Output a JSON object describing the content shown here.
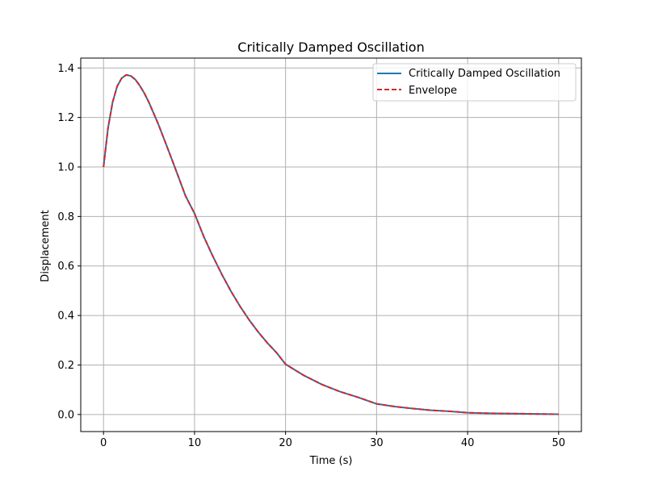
{
  "chart_data": {
    "type": "line",
    "title": "Critically Damped Oscillation",
    "xlabel": "Time (s)",
    "ylabel": "Displacement",
    "xlim": [
      -2.5,
      52.5
    ],
    "ylim": [
      -0.069,
      1.44
    ],
    "xticks": [
      0,
      10,
      20,
      30,
      40,
      50
    ],
    "yticks": [
      0.0,
      0.2,
      0.4,
      0.6,
      0.8,
      1.0,
      1.2,
      1.4
    ],
    "ytick_labels": [
      "0.0",
      "0.2",
      "0.4",
      "0.6",
      "0.8",
      "1.0",
      "1.2",
      "1.4"
    ],
    "grid": true,
    "legend_position": "top-right",
    "series": [
      {
        "name": "Critically Damped Oscillation",
        "color": "#1f77b4",
        "style": "solid",
        "x": [
          0,
          0.5,
          1,
          1.5,
          2,
          2.5,
          3,
          3.5,
          4,
          4.5,
          5,
          6,
          7,
          8,
          9,
          10,
          11,
          12,
          13,
          14,
          15,
          16,
          17,
          18,
          19,
          20,
          22,
          24,
          26,
          28,
          30,
          32,
          34,
          36,
          38,
          40,
          42,
          44,
          46,
          48,
          50
        ],
        "values": [
          1.0,
          1.158,
          1.262,
          1.326,
          1.359,
          1.372,
          1.368,
          1.353,
          1.328,
          1.297,
          1.26,
          1.175,
          1.08,
          0.983,
          0.884,
          0.812,
          0.72,
          0.64,
          0.566,
          0.498,
          0.437,
          0.382,
          0.333,
          0.289,
          0.25,
          0.203,
          0.158,
          0.121,
          0.092,
          0.069,
          0.043,
          0.032,
          0.024,
          0.017,
          0.013,
          0.007,
          0.005,
          0.004,
          0.003,
          0.002,
          0.001
        ]
      },
      {
        "name": "Envelope",
        "color": "#d62728",
        "style": "dashed",
        "x": [
          0,
          0.5,
          1,
          1.5,
          2,
          2.5,
          3,
          3.5,
          4,
          4.5,
          5,
          6,
          7,
          8,
          9,
          10,
          11,
          12,
          13,
          14,
          15,
          16,
          17,
          18,
          19,
          20,
          22,
          24,
          26,
          28,
          30,
          32,
          34,
          36,
          38,
          40,
          42,
          44,
          46,
          48,
          50
        ],
        "values": [
          1.0,
          1.158,
          1.262,
          1.326,
          1.359,
          1.372,
          1.368,
          1.353,
          1.328,
          1.297,
          1.26,
          1.175,
          1.08,
          0.983,
          0.884,
          0.812,
          0.72,
          0.64,
          0.566,
          0.498,
          0.437,
          0.382,
          0.333,
          0.289,
          0.25,
          0.203,
          0.158,
          0.121,
          0.092,
          0.069,
          0.043,
          0.032,
          0.024,
          0.017,
          0.013,
          0.007,
          0.005,
          0.004,
          0.003,
          0.002,
          0.001
        ]
      }
    ]
  }
}
